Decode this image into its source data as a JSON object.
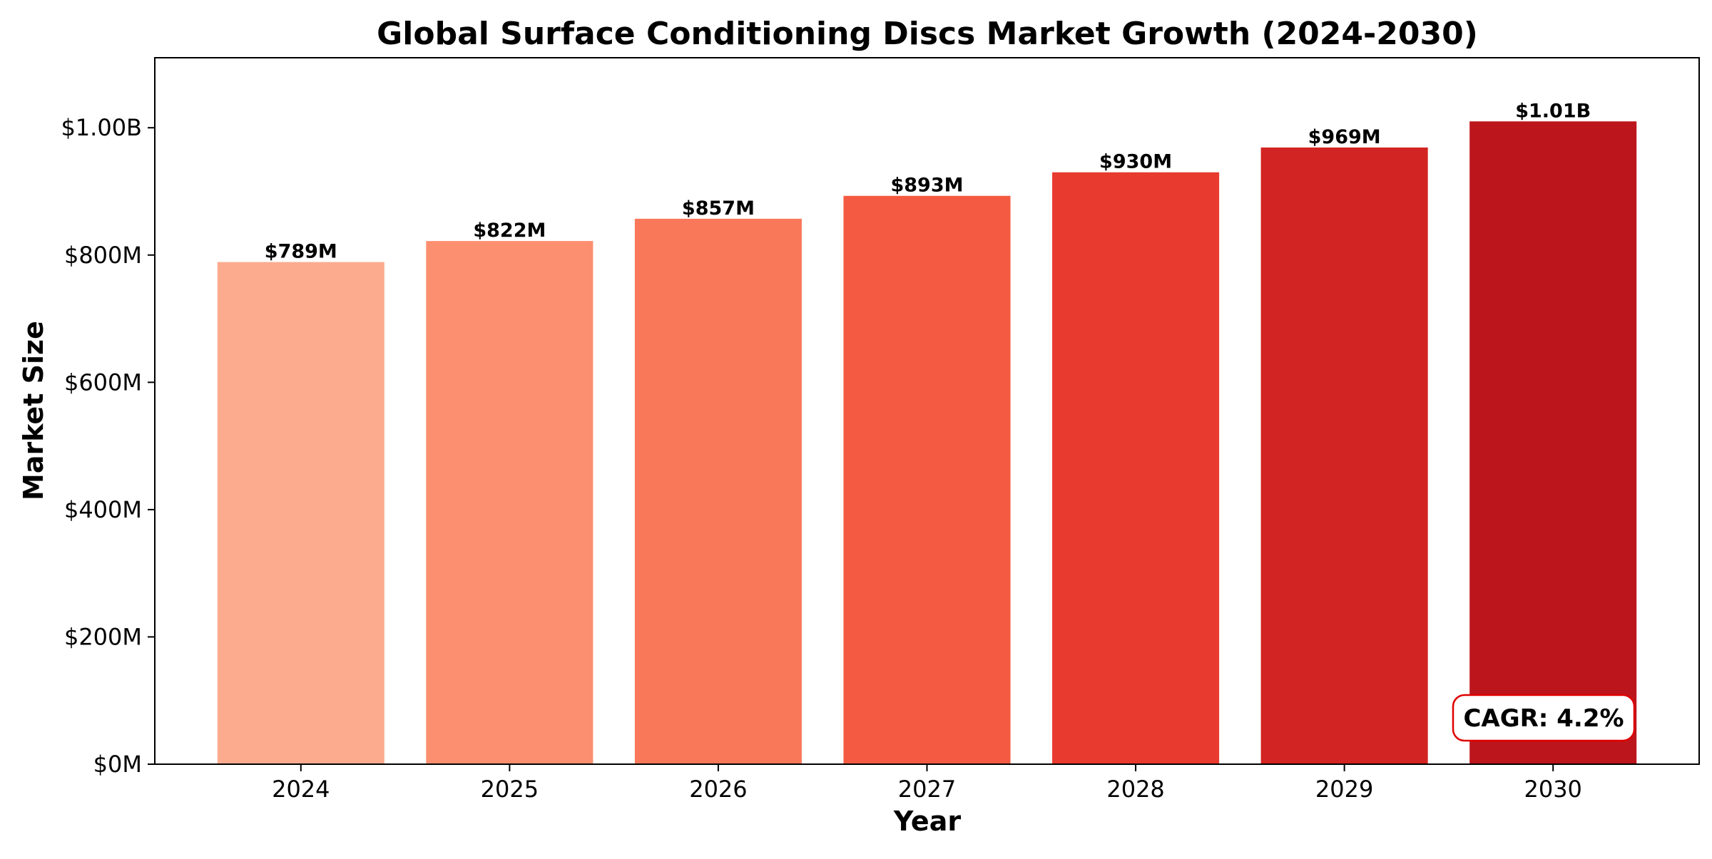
{
  "chart_data": {
    "type": "bar",
    "title": "Global Surface Conditioning Discs Market Growth (2024-2030)",
    "xlabel": "Year",
    "ylabel": "Market Size",
    "categories": [
      "2024",
      "2025",
      "2026",
      "2027",
      "2028",
      "2029",
      "2030"
    ],
    "values": [
      789,
      822,
      857,
      893,
      930,
      969,
      1010
    ],
    "value_unit": "$M",
    "data_labels": [
      "$789M",
      "$822M",
      "$857M",
      "$893M",
      "$930M",
      "$969M",
      "$1.01B"
    ],
    "colors": [
      "#fcab8f",
      "#fc8f6f",
      "#f9785a",
      "#f45a41",
      "#e83a2f",
      "#d22422",
      "#bc161c"
    ],
    "ylim": [
      0,
      1110
    ],
    "y_ticks": [
      0,
      200,
      400,
      600,
      800,
      1000
    ],
    "y_tick_labels": [
      "$0M",
      "$200M",
      "$400M",
      "$600M",
      "$800M",
      "$1.00B"
    ],
    "grid": false,
    "annotation": {
      "text": "CAGR: 4.2%",
      "position": "bottom-right",
      "border_color": "#e00000"
    }
  }
}
